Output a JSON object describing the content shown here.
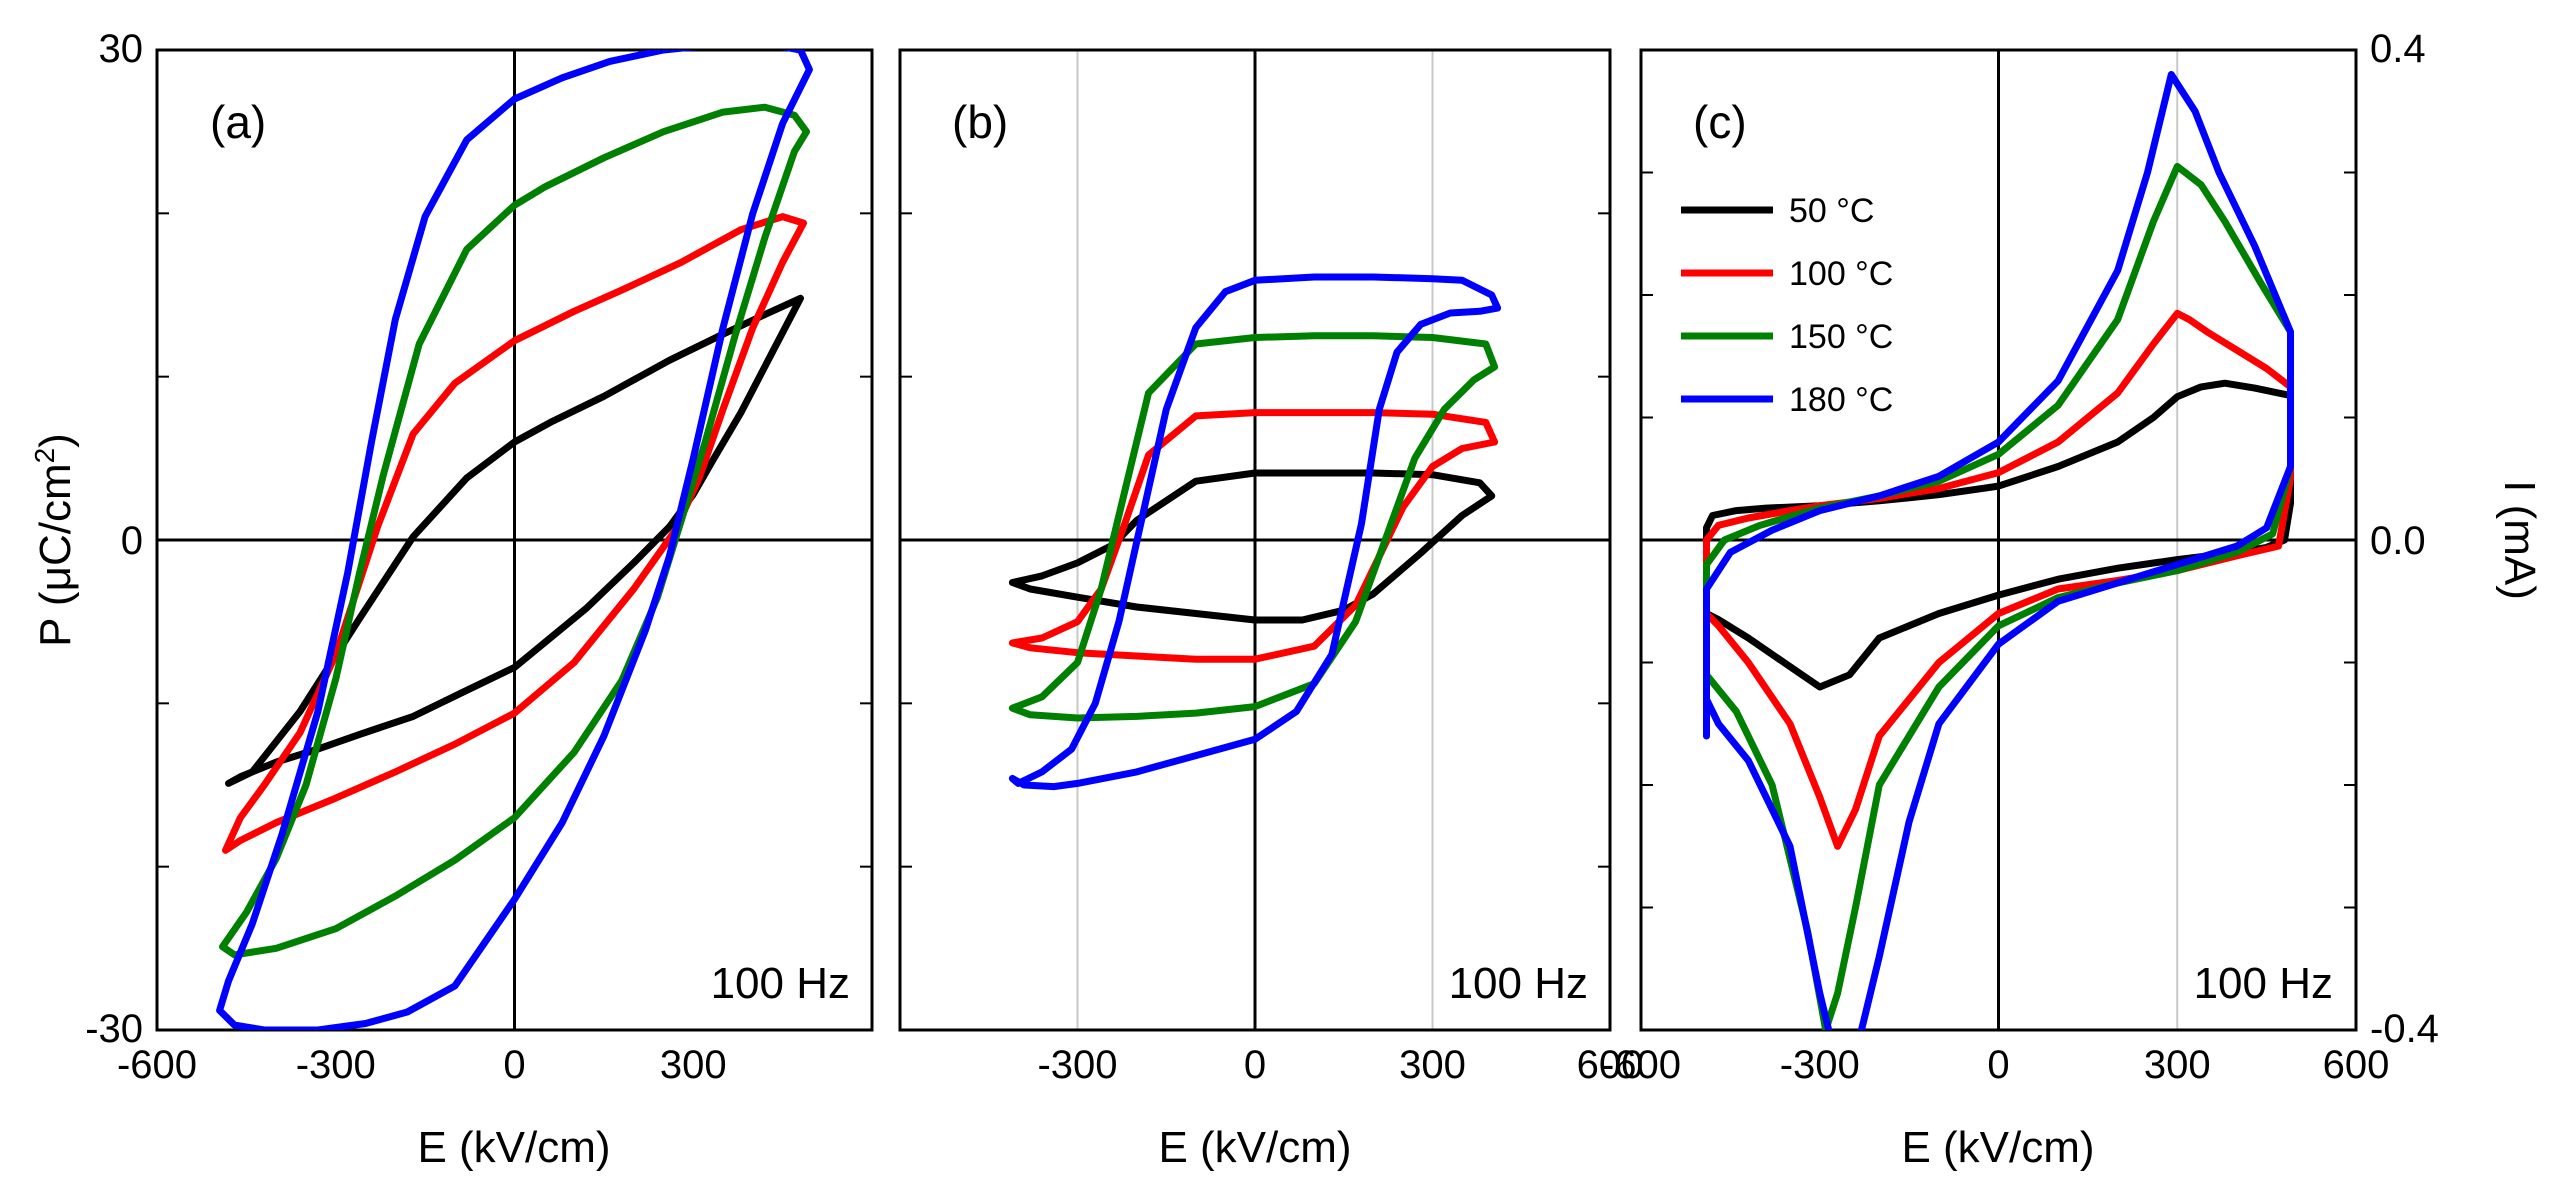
{
  "chart_data": [
    {
      "id": "a",
      "type": "line",
      "panel_label": "(a)",
      "annotation": "100 Hz",
      "xlabel": "E (kV/cm)",
      "ylabel": "P (μC/cm²)",
      "ylabel_parts": {
        "prefix": "P (",
        "mu": "μ",
        "unit": "C/cm",
        "sup": "2",
        "suffix": ")"
      },
      "xlim": [
        -600,
        600
      ],
      "ylim": [
        -30,
        30
      ],
      "xticks": [
        -600,
        -300,
        0,
        300
      ],
      "xtick_labels": [
        "-600",
        "-300",
        "0",
        "300"
      ],
      "yticks": [
        30,
        0,
        -30
      ],
      "ytick_labels": [
        "30",
        "0",
        "-30"
      ],
      "minor_yticks": [
        20,
        10,
        -10,
        -20
      ],
      "series": [
        {
          "name": "50 °C",
          "color": "#000000",
          "x": [
            480,
            420,
            350,
            260,
            150,
            60,
            0,
            -80,
            -170,
            -260,
            -360,
            -440,
            -480,
            -460,
            -400,
            -330,
            -260,
            -170,
            -80,
            0,
            120,
            200,
            260,
            300,
            330,
            380,
            430,
            480
          ],
          "y": [
            14.8,
            13.8,
            12.6,
            11.0,
            8.8,
            7.2,
            6.0,
            3.8,
            0.2,
            -4.8,
            -10.5,
            -14.2,
            -14.9,
            -14.5,
            -13.6,
            -12.8,
            -11.9,
            -10.8,
            -9.2,
            -7.8,
            -4.2,
            -1.4,
            0.8,
            2.8,
            4.7,
            7.8,
            11.3,
            14.8
          ]
        },
        {
          "name": "100 °C",
          "color": "#ff0000",
          "x": [
            485,
            450,
            380,
            280,
            180,
            100,
            0,
            -100,
            -170,
            -230,
            -300,
            -360,
            -420,
            -460,
            -485,
            -460,
            -400,
            -300,
            -200,
            -100,
            0,
            100,
            200,
            270,
            310,
            350,
            400,
            450,
            485
          ],
          "y": [
            19.4,
            19.8,
            19.0,
            17.0,
            15.3,
            14.0,
            12.2,
            9.6,
            6.5,
            0.8,
            -7.0,
            -11.8,
            -15.0,
            -17.0,
            -19.0,
            -18.4,
            -17.3,
            -15.8,
            -14.2,
            -12.5,
            -10.6,
            -7.5,
            -3.0,
            0.6,
            3.8,
            8.0,
            13.0,
            17.0,
            19.4
          ]
        },
        {
          "name": "150 °C",
          "color": "#008000",
          "x": [
            490,
            470,
            420,
            350,
            250,
            150,
            50,
            0,
            -80,
            -160,
            -220,
            -260,
            -300,
            -350,
            -400,
            -450,
            -490,
            -470,
            -400,
            -300,
            -200,
            -100,
            0,
            100,
            180,
            240,
            280,
            320,
            370,
            420,
            470,
            490
          ],
          "y": [
            25.0,
            26.0,
            26.5,
            26.2,
            25.0,
            23.4,
            21.6,
            20.5,
            17.8,
            12.0,
            4.0,
            -2.0,
            -8.5,
            -15.0,
            -19.5,
            -22.8,
            -24.9,
            -25.4,
            -25.0,
            -23.8,
            -21.8,
            -19.6,
            -17.0,
            -13.0,
            -8.6,
            -3.5,
            1.2,
            6.0,
            12.5,
            18.5,
            23.8,
            25.0
          ]
        },
        {
          "name": "180 °C",
          "color": "#0000ff",
          "x": [
            495,
            480,
            420,
            330,
            250,
            160,
            80,
            0,
            -80,
            -150,
            -200,
            -240,
            -280,
            -330,
            -390,
            -440,
            -480,
            -495,
            -470,
            -420,
            -330,
            -250,
            -180,
            -100,
            0,
            80,
            150,
            220,
            260,
            300,
            350,
            400,
            450,
            495
          ],
          "y": [
            28.8,
            30.0,
            30.4,
            30.3,
            30.0,
            29.3,
            28.3,
            27.0,
            24.5,
            19.8,
            13.5,
            6.0,
            -2.0,
            -10.5,
            -18.0,
            -23.5,
            -27.0,
            -28.8,
            -29.7,
            -30.0,
            -30.0,
            -29.6,
            -28.9,
            -27.3,
            -22.0,
            -17.3,
            -12.0,
            -5.5,
            -1.0,
            5.0,
            13.0,
            20.0,
            25.5,
            28.8
          ]
        }
      ]
    },
    {
      "id": "b",
      "type": "line",
      "panel_label": "(b)",
      "annotation": "100 Hz",
      "xlabel": "E (kV/cm)",
      "xlim": [
        -600,
        600
      ],
      "ylim": [
        -30,
        30
      ],
      "xticks": [
        -300,
        0,
        300,
        600
      ],
      "xtick_labels": [
        "-300",
        "0",
        "300",
        "600"
      ],
      "yticks": [
        30,
        20,
        10,
        0,
        -10,
        -20,
        -30
      ],
      "minor_yticks": [
        20,
        10,
        -10,
        -20
      ],
      "gridlines_x": [
        -300,
        300
      ],
      "series": [
        {
          "name": "50 °C",
          "color": "#000000",
          "x": [
            400,
            380,
            300,
            200,
            100,
            0,
            -100,
            -200,
            -240,
            -300,
            -360,
            -410,
            -380,
            -300,
            -200,
            -100,
            0,
            80,
            150,
            200,
            280,
            350,
            400
          ],
          "y": [
            2.7,
            3.5,
            4.0,
            4.1,
            4.1,
            4.1,
            3.6,
            1.2,
            -0.3,
            -1.4,
            -2.2,
            -2.6,
            -3.0,
            -3.5,
            -4.1,
            -4.5,
            -4.9,
            -4.9,
            -4.3,
            -3.3,
            -0.8,
            1.5,
            2.7
          ]
        },
        {
          "name": "100 °C",
          "color": "#ff0000",
          "x": [
            405,
            390,
            300,
            200,
            100,
            0,
            -100,
            -180,
            -220,
            -260,
            -300,
            -360,
            -410,
            -380,
            -300,
            -200,
            -100,
            0,
            100,
            170,
            210,
            250,
            300,
            350,
            405
          ],
          "y": [
            6.0,
            7.2,
            7.7,
            7.8,
            7.8,
            7.8,
            7.6,
            5.2,
            1.0,
            -3.0,
            -5.0,
            -6.0,
            -6.3,
            -6.6,
            -6.9,
            -7.1,
            -7.3,
            -7.3,
            -6.5,
            -4.0,
            -1.0,
            2.0,
            4.5,
            5.6,
            6.0
          ]
        },
        {
          "name": "150 °C",
          "color": "#008000",
          "x": [
            405,
            390,
            300,
            200,
            100,
            0,
            -100,
            -180,
            -220,
            -260,
            -300,
            -360,
            -410,
            -380,
            -300,
            -200,
            -100,
            0,
            100,
            170,
            230,
            270,
            320,
            370,
            405
          ],
          "y": [
            10.6,
            12.0,
            12.4,
            12.5,
            12.5,
            12.4,
            12.0,
            9.0,
            3.0,
            -3.0,
            -7.5,
            -9.6,
            -10.3,
            -10.7,
            -10.9,
            -10.8,
            -10.6,
            -10.2,
            -8.8,
            -5.0,
            1.0,
            5.0,
            8.0,
            9.8,
            10.6
          ]
        },
        {
          "name": "180 °C",
          "color": "#0000ff",
          "x": [
            410,
            400,
            350,
            300,
            200,
            100,
            0,
            -50,
            -100,
            -150,
            -190,
            -230,
            -270,
            -310,
            -360,
            -400,
            -410,
            -390,
            -340,
            -300,
            -200,
            -100,
            0,
            70,
            130,
            180,
            210,
            240,
            280,
            330,
            380,
            410
          ],
          "y": [
            14.2,
            15.0,
            15.9,
            16.0,
            16.1,
            16.1,
            15.9,
            15.2,
            13.0,
            8.0,
            1.5,
            -5.0,
            -10.0,
            -12.8,
            -14.2,
            -14.9,
            -14.6,
            -15.0,
            -15.1,
            -14.9,
            -14.2,
            -13.2,
            -12.2,
            -10.5,
            -7.0,
            1.0,
            8.0,
            11.5,
            13.2,
            13.9,
            14.0,
            14.2
          ]
        }
      ]
    },
    {
      "id": "c",
      "type": "line",
      "panel_label": "(c)",
      "annotation": "100 Hz",
      "xlabel": "E (kV/cm)",
      "ylabel": "I (mA)",
      "xlim": [
        -600,
        600
      ],
      "ylim": [
        -0.4,
        0.4
      ],
      "xticks": [
        -600,
        -300,
        0,
        300,
        600
      ],
      "xtick_labels": [
        "-600",
        "-300",
        "0",
        "300",
        "600"
      ],
      "yticks": [
        0.4,
        0.0,
        -0.4
      ],
      "ytick_labels": [
        "0.4",
        "0.0",
        "-0.4"
      ],
      "minor_yticks": [
        0.3,
        0.2,
        0.1,
        -0.1,
        -0.2,
        -0.3
      ],
      "gridlines_x": [
        300
      ],
      "legend": {
        "position": "top-left",
        "entries": [
          {
            "label": "50 °C",
            "color": "#000000"
          },
          {
            "label": "100 °C",
            "color": "#ff0000"
          },
          {
            "label": "150 °C",
            "color": "#008000"
          },
          {
            "label": "180 °C",
            "color": "#0000ff"
          }
        ]
      },
      "series": [
        {
          "name": "50 °C",
          "color": "#000000",
          "x": [
            -490,
            -490,
            -480,
            -440,
            -390,
            -300,
            -200,
            -100,
            0,
            100,
            200,
            260,
            300,
            340,
            380,
            430,
            490,
            490,
            480,
            450,
            400,
            300,
            200,
            100,
            0,
            -100,
            -200,
            -250,
            -300,
            -360,
            -420,
            -470,
            -490
          ],
          "y": [
            -0.08,
            0.01,
            0.02,
            0.024,
            0.026,
            0.028,
            0.032,
            0.037,
            0.044,
            0.06,
            0.08,
            0.1,
            0.117,
            0.125,
            0.128,
            0.124,
            0.118,
            0.03,
            0.0,
            -0.006,
            -0.01,
            -0.016,
            -0.023,
            -0.032,
            -0.045,
            -0.06,
            -0.08,
            -0.11,
            -0.12,
            -0.1,
            -0.08,
            -0.065,
            -0.06
          ]
        },
        {
          "name": "100 °C",
          "color": "#ff0000",
          "x": [
            -490,
            -490,
            -470,
            -420,
            -350,
            -300,
            -200,
            -100,
            0,
            100,
            200,
            260,
            300,
            320,
            350,
            400,
            450,
            490,
            490,
            470,
            400,
            300,
            200,
            100,
            0,
            -100,
            -200,
            -240,
            -270,
            -300,
            -350,
            -420,
            -470,
            -490
          ],
          "y": [
            -0.08,
            0.0,
            0.012,
            0.018,
            0.024,
            0.028,
            0.034,
            0.042,
            0.055,
            0.08,
            0.12,
            0.16,
            0.185,
            0.18,
            0.17,
            0.155,
            0.14,
            0.125,
            0.05,
            -0.005,
            -0.013,
            -0.025,
            -0.033,
            -0.04,
            -0.06,
            -0.1,
            -0.16,
            -0.22,
            -0.25,
            -0.21,
            -0.15,
            -0.1,
            -0.07,
            -0.06
          ]
        },
        {
          "name": "150 °C",
          "color": "#008000",
          "x": [
            -490,
            -490,
            -460,
            -400,
            -330,
            -300,
            -200,
            -100,
            0,
            100,
            200,
            260,
            300,
            340,
            380,
            440,
            490,
            490,
            460,
            400,
            300,
            200,
            100,
            0,
            -100,
            -200,
            -240,
            -270,
            -290,
            -320,
            -380,
            -440,
            -490
          ],
          "y": [
            -0.12,
            -0.02,
            0.0,
            0.012,
            0.022,
            0.026,
            0.036,
            0.048,
            0.07,
            0.11,
            0.18,
            0.26,
            0.305,
            0.29,
            0.26,
            0.21,
            0.17,
            0.06,
            0.005,
            -0.01,
            -0.025,
            -0.035,
            -0.047,
            -0.07,
            -0.12,
            -0.2,
            -0.3,
            -0.37,
            -0.4,
            -0.32,
            -0.2,
            -0.14,
            -0.11
          ]
        },
        {
          "name": "180 °C",
          "color": "#0000ff",
          "x": [
            -490,
            -490,
            -450,
            -380,
            -320,
            -300,
            -200,
            -100,
            0,
            100,
            200,
            250,
            290,
            330,
            370,
            430,
            490,
            490,
            450,
            400,
            300,
            200,
            100,
            0,
            -100,
            -150,
            -200,
            -230,
            -260,
            -300,
            -350,
            -420,
            -470,
            -490
          ],
          "y": [
            -0.16,
            -0.04,
            -0.01,
            0.008,
            0.02,
            0.024,
            0.036,
            0.052,
            0.08,
            0.13,
            0.22,
            0.3,
            0.38,
            0.35,
            0.3,
            0.24,
            0.17,
            0.06,
            0.01,
            -0.005,
            -0.02,
            -0.035,
            -0.05,
            -0.085,
            -0.15,
            -0.23,
            -0.34,
            -0.4,
            -0.45,
            -0.37,
            -0.25,
            -0.18,
            -0.15,
            -0.13
          ]
        }
      ]
    }
  ]
}
